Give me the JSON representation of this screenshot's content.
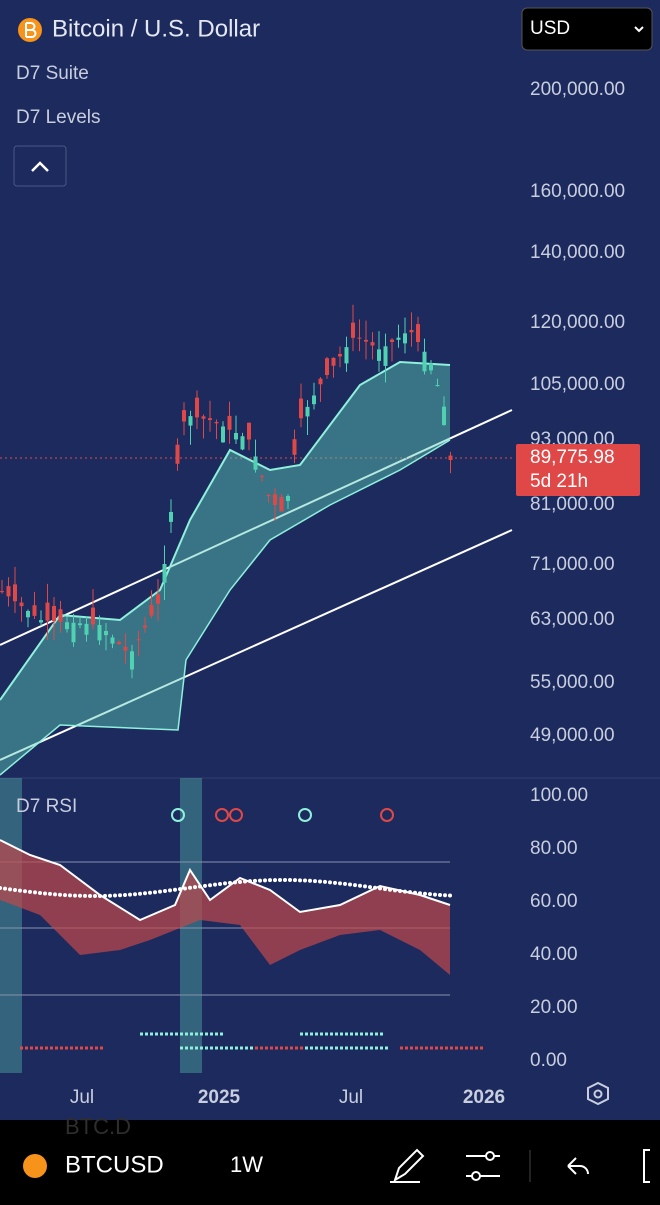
{
  "header": {
    "title": "Bitcoin / U.S. Dollar",
    "currency": "USD",
    "indicators": [
      "D7 Suite",
      "D7 Levels"
    ]
  },
  "price_axis": [
    "200,000.00",
    "160,000.00",
    "140,000.00",
    "120,000.00",
    "105,000.00",
    "93,000.00",
    "81,000.00",
    "71,000.00",
    "63,000.00",
    "55,000.00",
    "49,000.00"
  ],
  "current_price": {
    "price": "89,775.98",
    "countdown": "5d 21h"
  },
  "rsi": {
    "title": "D7 RSI",
    "axis": [
      "100.00",
      "80.00",
      "60.00",
      "40.00",
      "20.00",
      "0.00"
    ]
  },
  "time_axis": [
    "Jul",
    "2025",
    "Jul",
    "2026"
  ],
  "toolbar": {
    "symbol": "BTCUSD",
    "interval": "1W",
    "ghost": "BTC.D"
  }
}
